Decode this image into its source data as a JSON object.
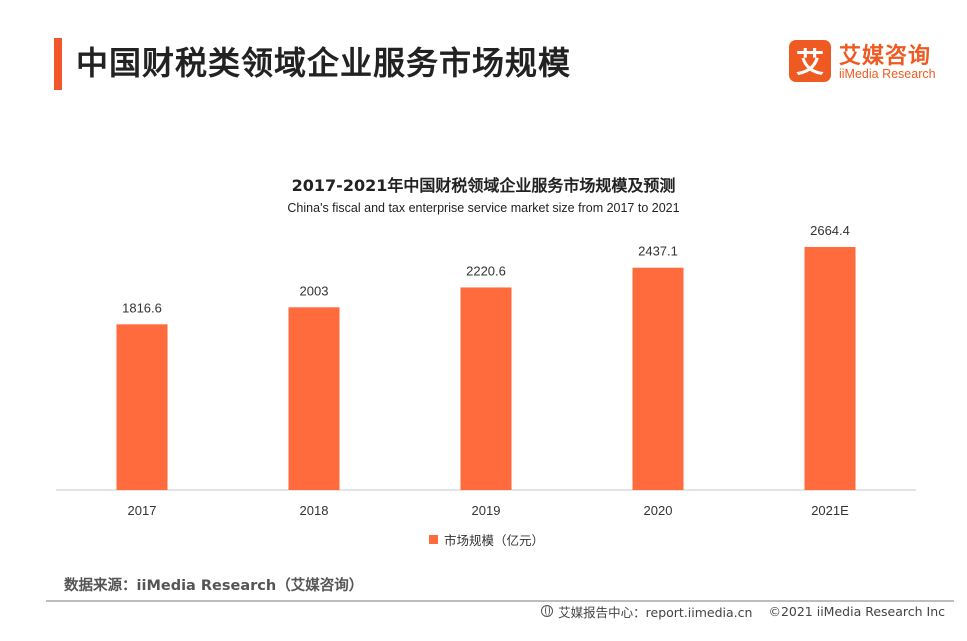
{
  "header": {
    "title": "中国财税类领域企业服务市场规模",
    "brand_cn": "艾媒咨询",
    "brand_en": "iiMedia Research",
    "brand_mark": "艾"
  },
  "chart_data": {
    "type": "bar",
    "title": "2017-2021年中国财税领域企业服务市场规模及预测",
    "subtitle": "China's fiscal and tax enterprise service market size from 2017 to 2021",
    "categories": [
      "2017",
      "2018",
      "2019",
      "2020",
      "2021E"
    ],
    "series": [
      {
        "name": "市场规模（亿元）",
        "values": [
          1816.6,
          2003,
          2220.6,
          2437.1,
          2664.4
        ],
        "color": "#ff6b3d"
      }
    ],
    "data_labels": [
      "1816.6",
      "2003",
      "2220.6",
      "2437.1",
      "2664.4"
    ],
    "xlabel": "",
    "ylabel": "",
    "ylim": [
      0,
      3300
    ],
    "grid": false,
    "legend": "bottom-center"
  },
  "footer": {
    "source": "数据来源：iiMedia Research（艾媒咨询）",
    "report_center": "艾媒报告中心：report.iimedia.cn",
    "copyright": "©2021  iiMedia Research Inc"
  }
}
